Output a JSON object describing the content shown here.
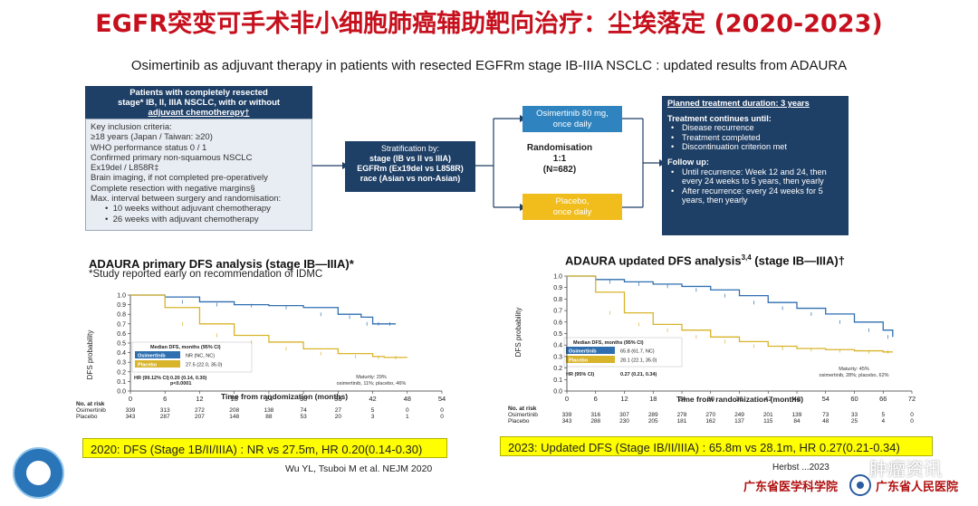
{
  "slide_title": "EGFR突变可手术非小细胞肺癌辅助靶向治疗：尘埃落定 (2020-2023)",
  "subtitle": "Osimertinib as adjuvant therapy in patients with resected EGFRm stage IB-IIIA NSCLC : updated results from ADAURA",
  "design": {
    "population_header": [
      "Patients with completely resected",
      "stage* IB, II, IIIA NSCLC, with or without",
      "adjuvant chemotherapy†"
    ],
    "criteria": [
      "Key inclusion criteria:",
      "≥18 years (Japan / Taiwan: ≥20)",
      "WHO performance status 0 / 1",
      "Confirmed primary non-squamous NSCLC",
      "Ex19del / L858R‡",
      "Brain imaging, if not completed pre-operatively",
      "Complete resection with negative margins§",
      "Max. interval between surgery and randomisation:"
    ],
    "criteria_bullets": [
      "10 weeks without adjuvant chemotherapy",
      "26 weeks with adjuvant chemotherapy"
    ],
    "stratification": {
      "title": "Stratification by:",
      "stage": "stage (IB vs II vs IIIA)",
      "egfrm": "EGFRm (Ex19del vs L858R)",
      "race": "race (Asian vs non-Asian)"
    },
    "randomisation": {
      "label": "Randomisation",
      "ratio": "1:1",
      "n": "(N=682)"
    },
    "arm_osimertinib": [
      "Osimertinib 80 mg,",
      "once daily"
    ],
    "arm_placebo": [
      "Placebo,",
      "once daily"
    ],
    "plan": {
      "title": "Planned treatment duration: 3 years",
      "continues_title": "Treatment continues until:",
      "continues_items": [
        "Disease recurrence",
        "Treatment completed",
        "Discontinuation criterion met"
      ],
      "followup_title": "Follow up:",
      "followup_items": [
        "Until recurrence: Week 12 and 24, then every 24 weeks to 5 years, then yearly",
        "After recurrence: every 24 weeks for 5 years, then yearly"
      ]
    }
  },
  "colors": {
    "title_red": "#c6101d",
    "navy": "#1e3f66",
    "osimertinib_blue": "#2f6fb0",
    "placebo_yellow": "#d8b42a",
    "caption_yellow": "#ffff00"
  },
  "left_chart": {
    "title": "ADAURA primary DFS analysis (stage IB—IIIA)*",
    "note": "*Study reported early on recommendation of IDMC",
    "ylabel": "DFS probability",
    "xlabel": "Time from randomization (months)",
    "median_header": "Median DFS, months (95% CI)",
    "osi_label": "Osimertinib",
    "osi_median": "NR (NC, NC)",
    "pla_label": "Placebo",
    "pla_median": "27.5 (22.0, 35.0)",
    "hr_label": "HR (99.12% CI)",
    "hr_value": "0.20 (0.14, 0.30)",
    "p_value": "p<0.0001",
    "maturity": "Maturity: 29%",
    "maturity_detail": "osimertinib, 11%; placebo, 46%",
    "risk_header": "No. at risk",
    "risk_rows": [
      {
        "label": "Osimertinib",
        "values": [
          "339",
          "313",
          "272",
          "208",
          "138",
          "74",
          "27",
          "5",
          "0",
          "0"
        ]
      },
      {
        "label": "Placebo",
        "values": [
          "343",
          "287",
          "207",
          "148",
          "88",
          "53",
          "20",
          "3",
          "1",
          "0"
        ]
      }
    ]
  },
  "right_chart": {
    "title": "ADAURA updated DFS analysis",
    "title_sup": "3,4",
    "title_suffix": " (stage IB—IIIA)†",
    "ylabel": "DFS probability",
    "xlabel": "Time from randomization (months)",
    "median_header": "Median DFS, months (95% CI)",
    "osi_label": "Osimertinib",
    "osi_median": "65.8 (61.7, NC)",
    "pla_label": "Placebo",
    "pla_median": "28.1 (22.1, 35.0)",
    "hr_label": "HR (95% CI)",
    "hr_value": "0.27 (0.21, 0.34)",
    "maturity": "Maturity: 45%",
    "maturity_detail": "osimertinib, 28%; placebo, 62%",
    "risk_header": "No. at risk",
    "risk_rows": [
      {
        "label": "Osimertinib",
        "values": [
          "339",
          "316",
          "307",
          "289",
          "278",
          "270",
          "249",
          "201",
          "139",
          "73",
          "33",
          "5",
          "0"
        ]
      },
      {
        "label": "Placebo",
        "values": [
          "343",
          "288",
          "230",
          "205",
          "181",
          "162",
          "137",
          "115",
          "84",
          "48",
          "25",
          "4",
          "0"
        ]
      }
    ]
  },
  "chart_data": [
    {
      "type": "line",
      "title": "ADAURA primary DFS analysis (stage IB—IIIA)*",
      "xlabel": "Time from randomization (months)",
      "ylabel": "DFS probability",
      "xlim": [
        0,
        54
      ],
      "ylim": [
        0,
        1.0
      ],
      "xticks": [
        0,
        6,
        12,
        18,
        24,
        30,
        36,
        42,
        48,
        54
      ],
      "yticks": [
        0,
        0.1,
        0.2,
        0.3,
        0.4,
        0.5,
        0.6,
        0.7,
        0.8,
        0.9,
        1.0
      ],
      "series": [
        {
          "name": "Osimertinib",
          "color": "#2f6fb0",
          "x": [
            0,
            6,
            12,
            18,
            24,
            30,
            36,
            40,
            42,
            44,
            46
          ],
          "y": [
            1.0,
            0.98,
            0.93,
            0.9,
            0.89,
            0.87,
            0.8,
            0.77,
            0.7,
            0.7,
            0.7
          ]
        },
        {
          "name": "Placebo",
          "color": "#d8b42a",
          "x": [
            0,
            6,
            12,
            18,
            24,
            30,
            36,
            42,
            44,
            48
          ],
          "y": [
            1.0,
            0.87,
            0.7,
            0.58,
            0.51,
            0.44,
            0.39,
            0.36,
            0.35,
            0.35
          ]
        }
      ]
    },
    {
      "type": "line",
      "title": "ADAURA updated DFS analysis (stage IB—IIIA)†",
      "xlabel": "Time from randomization (months)",
      "ylabel": "DFS probability",
      "xlim": [
        0,
        72
      ],
      "ylim": [
        0,
        1.0
      ],
      "xticks": [
        0,
        6,
        12,
        18,
        24,
        30,
        36,
        42,
        48,
        54,
        60,
        66,
        72
      ],
      "yticks": [
        0,
        0.1,
        0.2,
        0.3,
        0.4,
        0.5,
        0.6,
        0.7,
        0.8,
        0.9,
        1.0
      ],
      "series": [
        {
          "name": "Osimertinib",
          "color": "#2f6fb0",
          "x": [
            0,
            6,
            12,
            18,
            24,
            30,
            36,
            42,
            48,
            54,
            60,
            66,
            68
          ],
          "y": [
            1.0,
            0.97,
            0.95,
            0.93,
            0.91,
            0.88,
            0.83,
            0.77,
            0.72,
            0.67,
            0.6,
            0.53,
            0.47
          ]
        },
        {
          "name": "Placebo",
          "color": "#d8b42a",
          "x": [
            0,
            6,
            12,
            18,
            24,
            30,
            36,
            42,
            48,
            54,
            60,
            66,
            68
          ],
          "y": [
            1.0,
            0.86,
            0.68,
            0.58,
            0.53,
            0.47,
            0.43,
            0.39,
            0.37,
            0.36,
            0.35,
            0.34,
            0.34
          ]
        }
      ]
    }
  ],
  "caption_left": "2020: DFS (Stage 1B/II/IIIA) : NR vs 27.5m, HR 0.20(0.14-0.30)",
  "caption_right": "2023: Updated DFS (Stage IB/II/IIIA) : 65.8m vs 28.1m, HR 0.27(0.21-0.34)",
  "ref_left": "Wu YL, Tsuboi M et al. NEJM 2020",
  "ref_right": "Herbst                    ...2023",
  "watermark": "肿瘤资讯",
  "logo_academy": "广东省医学科学院",
  "logo_hospital": "广东省人民医院"
}
